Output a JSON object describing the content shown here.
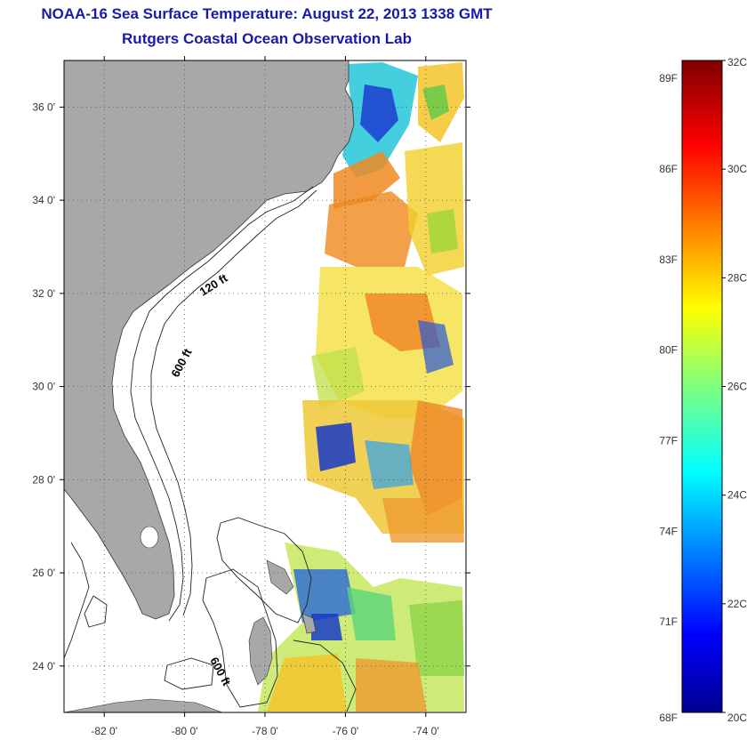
{
  "title_line1": "NOAA-16 Sea Surface Temperature:  August 22, 2013 1338 GMT",
  "title_line2": "Rutgers Coastal Ocean Observation Lab",
  "map": {
    "lon_range": [
      -83,
      -73
    ],
    "lat_range": [
      23,
      37
    ],
    "lon_ticks": [
      {
        "value": -82,
        "label": "-82 0'"
      },
      {
        "value": -80,
        "label": "-80 0'"
      },
      {
        "value": -78,
        "label": "-78 0'"
      },
      {
        "value": -76,
        "label": "-76 0'"
      },
      {
        "value": -74,
        "label": "-74 0'"
      }
    ],
    "lat_ticks": [
      {
        "value": 36,
        "label": "36 0'"
      },
      {
        "value": 34,
        "label": "34 0'"
      },
      {
        "value": 32,
        "label": "32 0'"
      },
      {
        "value": 30,
        "label": "30 0'"
      },
      {
        "value": 28,
        "label": "28 0'"
      },
      {
        "value": 26,
        "label": "26 0'"
      },
      {
        "value": 24,
        "label": "24 0'"
      }
    ],
    "depth_labels": [
      "120 ft",
      "600 ft",
      "600 ft"
    ],
    "colors": {
      "land": "#a8a8a8",
      "ocean_nodata": "#ffffff",
      "grid": "#555555"
    }
  },
  "colorbar": {
    "min_c": 20,
    "max_c": 32,
    "celsius_labels": [
      {
        "value": 32,
        "label": "32C"
      },
      {
        "value": 30,
        "label": "30C"
      },
      {
        "value": 28,
        "label": "28C"
      },
      {
        "value": 26,
        "label": "26C"
      },
      {
        "value": 24,
        "label": "24C"
      },
      {
        "value": 22,
        "label": "22C"
      },
      {
        "value": 20,
        "label": "20C"
      }
    ],
    "fahrenheit_labels": [
      {
        "value_c": 31.67,
        "label": "89F"
      },
      {
        "value_c": 30.0,
        "label": "86F"
      },
      {
        "value_c": 28.33,
        "label": "83F"
      },
      {
        "value_c": 26.67,
        "label": "80F"
      },
      {
        "value_c": 25.0,
        "label": "77F"
      },
      {
        "value_c": 23.33,
        "label": "74F"
      },
      {
        "value_c": 21.67,
        "label": "71F"
      },
      {
        "value_c": 20.0,
        "label": "68F"
      }
    ]
  }
}
